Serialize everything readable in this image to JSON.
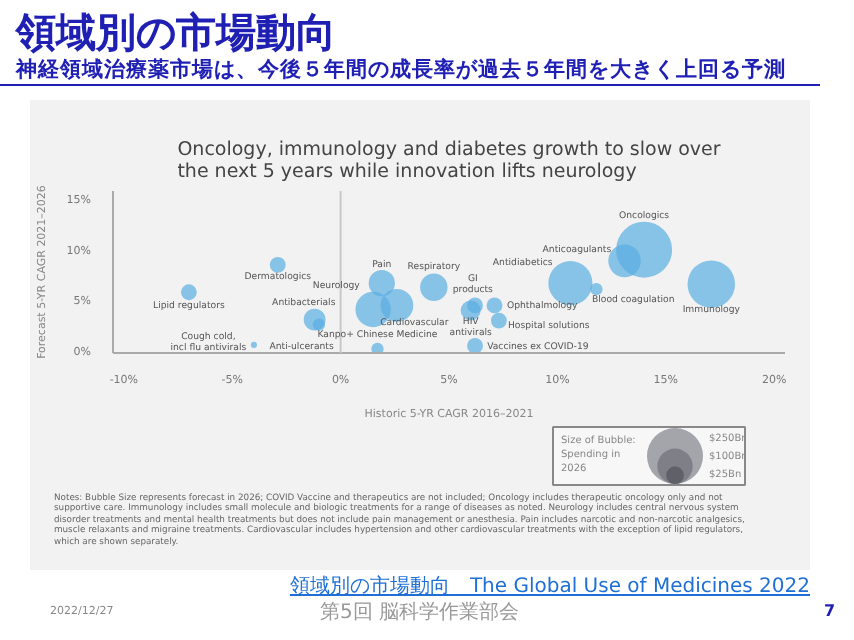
{
  "chart_data": {
    "type": "bubble",
    "title": "領域別の市場動向",
    "subtitle": "神経領域治療薬市場は、今後５年間の成長率が過去５年間を大きく上回る予測",
    "xlabel": "Historic 5-YR CAGR 2016–2021",
    "ylabel": "Forecast 5-YR CAGR 2021–2026",
    "legend_title": "Size of Bubble: Spending in 2026",
    "size_legend": [
      {
        "value": 250,
        "label": "$250Bn"
      },
      {
        "value": 100,
        "label": "$100Bn"
      },
      {
        "value": 25,
        "label": "$25Bn"
      }
    ],
    "xlim": [
      -10.5,
      20.5
    ],
    "ylim": [
      0,
      16
    ],
    "xticks": [
      {
        "value": -10,
        "label": "-10%"
      },
      {
        "value": -5,
        "label": "-5%"
      },
      {
        "value": 0,
        "label": "0%"
      },
      {
        "value": 5,
        "label": "5%"
      },
      {
        "value": 10,
        "label": "10%"
      },
      {
        "value": 15,
        "label": "15%"
      },
      {
        "value": 20,
        "label": "20%"
      }
    ],
    "yticks": [
      {
        "value": 0,
        "label": "0%"
      },
      {
        "value": 5,
        "label": "5%"
      },
      {
        "value": 10,
        "label": "10%"
      },
      {
        "value": 15,
        "label": "15%"
      }
    ],
    "grid": false,
    "ref_lines": [
      {
        "axis": "x",
        "value": 0,
        "label": null,
        "color": "#c8c8c8"
      }
    ],
    "series": [
      {
        "color": "#5aaee3",
        "x": [
          -7.0,
          -2.9,
          -4.0,
          -1.2,
          -1.0,
          1.5,
          1.9,
          2.6,
          1.7,
          4.3,
          6.2,
          6.0,
          7.1,
          7.3,
          6.2,
          10.6,
          13.1,
          14.0,
          11.8,
          17.1
        ],
        "values": [
          6.0,
          8.7,
          0.8,
          3.3,
          2.8,
          4.3,
          6.9,
          4.7,
          0.4,
          6.5,
          4.7,
          4.2,
          4.7,
          3.2,
          0.7,
          6.9,
          9.1,
          10.2,
          6.3,
          6.8
        ],
        "sizes": [
          20,
          20,
          3,
          38,
          12,
          100,
          55,
          85,
          12,
          60,
          20,
          32,
          20,
          20,
          20,
          155,
          85,
          250,
          12,
          180
        ]
      }
    ],
    "annotations": [
      "Oncology, immunology and diabetes growth to slow over the next 5 years while innovation lifts neurology",
      "Notes: Bubble Size represents forecast in 2026; COVID Vaccine and therapeutics are not included; Oncology includes therapeutic oncology only and not supportive care. Immunology includes small molecule and biologic treatments for a range of diseases as noted. Neurology includes central nervous system disorder treatments and mental health treatments but does not include pain management or anesthesia. Pain includes narcotic and non-narcotic analgesics, muscle relaxants and migraine treatments. Cardiovascular includes hypertension and other cardiovascular treatments with the exception of lipid regulators, which are shown separately.",
      "領域別の市場動向　The Global Use of Medicines 2022",
      "2022/12/27",
      "第5回 脳科学作業部会",
      "7",
      {
        "text": "Lipid regulators",
        "x": -7.0,
        "y": 6.0
      },
      {
        "text": "Dermatologics",
        "x": -2.9,
        "y": 8.7
      },
      {
        "text": "Cough cold,\nincl flu antivirals",
        "x": -4.0,
        "y": 0.8
      },
      {
        "text": "Antibacterials",
        "x": -1.2,
        "y": 3.3
      },
      {
        "text": "Anti-ulcerants",
        "x": -1.0,
        "y": 2.8
      },
      {
        "text": "Neurology",
        "x": 1.5,
        "y": 4.3
      },
      {
        "text": "Pain",
        "x": 1.9,
        "y": 6.9
      },
      {
        "text": "Cardiovascular",
        "x": 2.6,
        "y": 4.7
      },
      {
        "text": "Kanpo+ Chinese Medicine",
        "x": 1.7,
        "y": 0.4
      },
      {
        "text": "Respiratory",
        "x": 4.3,
        "y": 6.5
      },
      {
        "text": "GI\nproducts",
        "x": 6.2,
        "y": 4.7
      },
      {
        "text": "HIV\nantivirals",
        "x": 6.0,
        "y": 4.2
      },
      {
        "text": "Ophthalmology",
        "x": 7.1,
        "y": 4.7
      },
      {
        "text": "Hospital solutions",
        "x": 7.3,
        "y": 3.2
      },
      {
        "text": "Vaccines ex COVID-19",
        "x": 6.2,
        "y": 0.7
      },
      {
        "text": "Antidiabetics",
        "x": 10.6,
        "y": 6.9
      },
      {
        "text": "Anticoagulants",
        "x": 13.1,
        "y": 9.1
      },
      {
        "text": "Oncologics",
        "x": 14.0,
        "y": 10.2
      },
      {
        "text": "Blood coagulation",
        "x": 11.8,
        "y": 6.3
      },
      {
        "text": "Immunology",
        "x": 17.1,
        "y": 6.8
      }
    ]
  }
}
